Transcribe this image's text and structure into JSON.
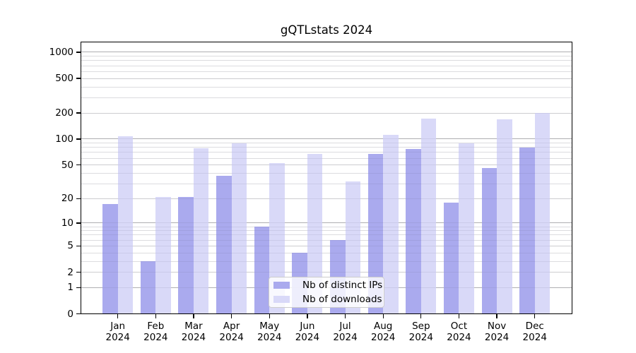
{
  "chart_data": {
    "type": "bar",
    "title": "gQTLstats 2024",
    "categories": [
      "Jan 2024",
      "Feb 2024",
      "Mar 2024",
      "Apr 2024",
      "May 2024",
      "Jun 2024",
      "Jul 2024",
      "Aug 2024",
      "Sep 2024",
      "Oct 2024",
      "Nov 2024",
      "Dec 2024"
    ],
    "series": [
      {
        "name": "Nb of distinct IPs",
        "color": "#aaaaee",
        "values": [
          17,
          3,
          21,
          37,
          9,
          4,
          6,
          67,
          77,
          18,
          46,
          79
        ]
      },
      {
        "name": "Nb of downloads",
        "color": "#d9d9f8",
        "values": [
          107,
          21,
          78,
          90,
          53,
          67,
          32,
          112,
          171,
          90,
          168,
          200
        ]
      }
    ],
    "yticks": [
      0,
      1,
      2,
      5,
      10,
      20,
      50,
      100,
      200,
      500,
      1000
    ],
    "minor_gridlines": [
      3,
      4,
      6,
      7,
      8,
      9,
      30,
      40,
      60,
      70,
      80,
      90,
      300,
      400,
      600,
      700,
      800,
      900
    ],
    "y_scale": "log10(value+1)",
    "ylim": [
      0,
      1320
    ],
    "xlabel": "",
    "ylabel": "",
    "grid": true,
    "legend_position": "lower center"
  },
  "colors": {
    "background": "#ffffff",
    "axis": "#000000",
    "grid_major": "#b9b9b9",
    "grid_mid": "#dcdcdc",
    "grid_minor": "#ededed"
  }
}
